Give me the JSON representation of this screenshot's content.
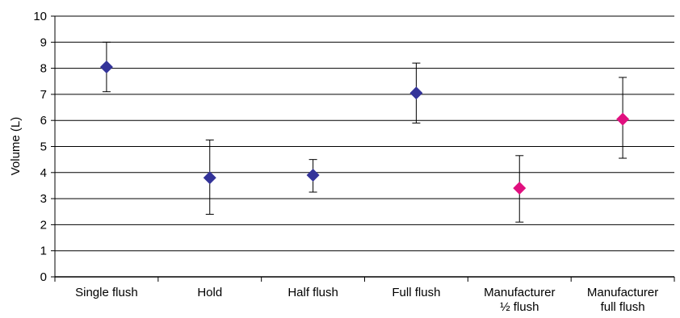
{
  "chart_data": {
    "type": "scatter",
    "title": "",
    "xlabel": "",
    "ylabel": "Volume (L)",
    "ylim": [
      0,
      10
    ],
    "yticks": [
      0,
      1,
      2,
      3,
      4,
      5,
      6,
      7,
      8,
      9,
      10
    ],
    "grid": true,
    "categories": [
      [
        "Single flush"
      ],
      [
        "Hold"
      ],
      [
        "Half flush"
      ],
      [
        "Full flush"
      ],
      [
        "Manufacturer",
        "½ flush"
      ],
      [
        "Manufacturer",
        "full flush"
      ]
    ],
    "points": [
      {
        "value": 8.05,
        "low": 7.1,
        "high": 9.0,
        "color": "#333399"
      },
      {
        "value": 3.8,
        "low": 2.4,
        "high": 5.25,
        "color": "#333399"
      },
      {
        "value": 3.9,
        "low": 3.25,
        "high": 4.5,
        "color": "#333399"
      },
      {
        "value": 7.05,
        "low": 5.9,
        "high": 8.2,
        "color": "#333399"
      },
      {
        "value": 3.4,
        "low": 2.1,
        "high": 4.65,
        "color": "#e0107f"
      },
      {
        "value": 6.05,
        "low": 4.55,
        "high": 7.65,
        "color": "#e0107f"
      }
    ]
  }
}
